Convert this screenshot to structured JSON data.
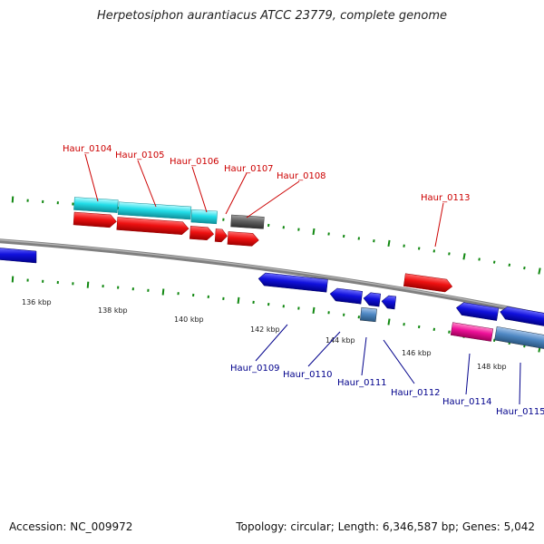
{
  "title": "Herpetosiphon aurantiacus ATCC 23779, complete genome",
  "accession": "Accession: NC_009972",
  "summary": "Topology: circular; Length: 6,346,587 bp; Genes: 5,042",
  "colors": {
    "backbone": "#808080",
    "cds_forward": "#ee1111",
    "cds_reverse": "#1111dd",
    "cyan": "#22dde8",
    "steelblue": "#4f88c4",
    "magenta": "#ee1199",
    "gray_feature": "#606060",
    "dot": "#118811"
  },
  "scale": {
    "ticks": [
      "136 kbp",
      "138 kbp",
      "140 kbp",
      "142 kbp",
      "144 kbp",
      "146 kbp",
      "148 kbp"
    ]
  },
  "genes_top": [
    "Haur_0104",
    "Haur_0105",
    "Haur_0106",
    "Haur_0107",
    "Haur_0108",
    "Haur_0113"
  ],
  "genes_bottom": [
    "Haur_0109",
    "Haur_0110",
    "Haur_0111",
    "Haur_0112",
    "Haur_0114",
    "Haur_0115"
  ]
}
